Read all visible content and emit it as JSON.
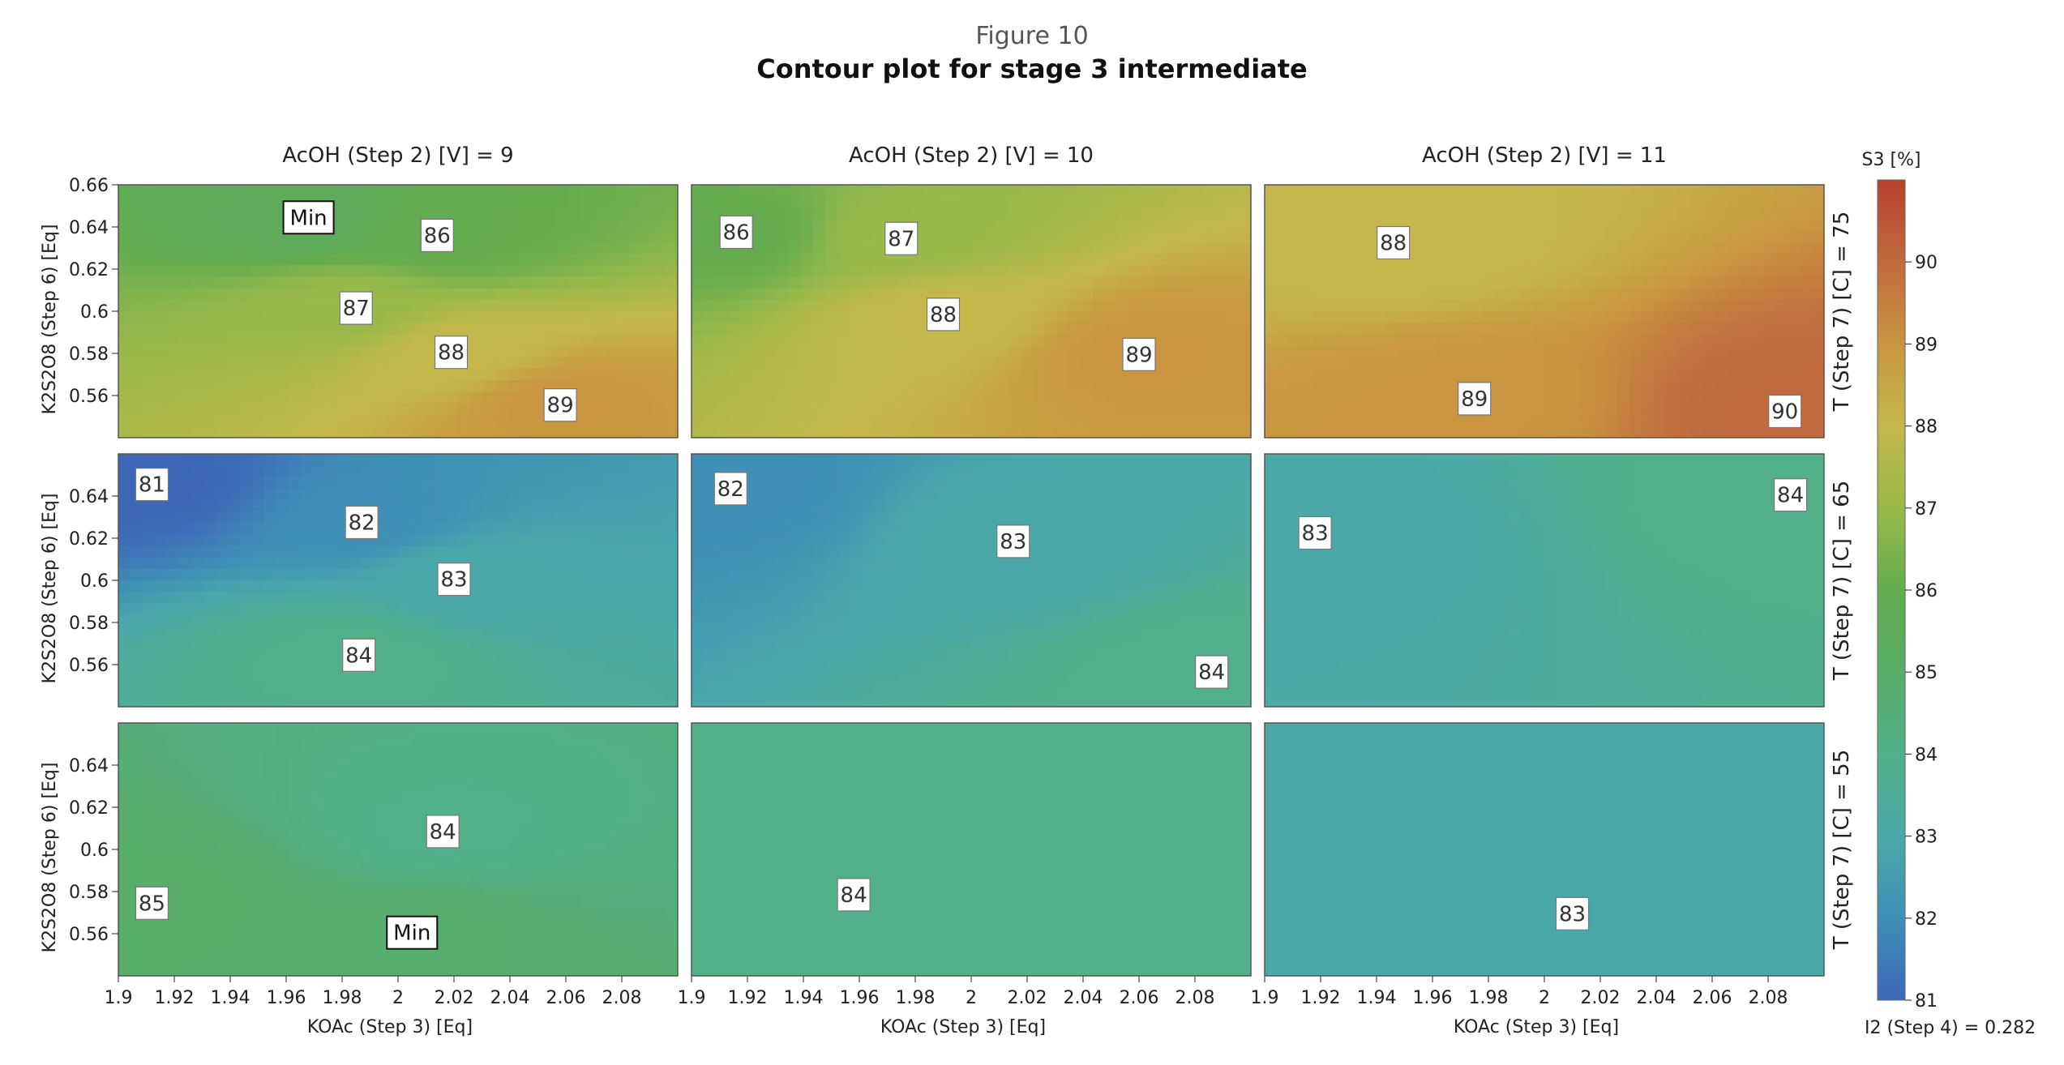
{
  "figure": {
    "number": "Figure 10",
    "title": "Contour plot for stage 3 intermediate"
  },
  "chart_data": {
    "type": "contour",
    "columns": [
      {
        "label": "AcOH (Step 2) [V] = 9",
        "acoh": 9
      },
      {
        "label": "AcOH (Step 2) [V] = 10",
        "acoh": 10
      },
      {
        "label": "AcOH (Step 2) [V] = 11",
        "acoh": 11
      }
    ],
    "rows": [
      {
        "label": "T (Step 7) [C] = 75",
        "T": 75
      },
      {
        "label": "T (Step 7) [C] = 65",
        "T": 65
      },
      {
        "label": "T (Step 7) [C] = 55",
        "T": 55
      }
    ],
    "xlabel": "KOAc (Step 3) [Eq]",
    "ylabel": "K2S2O8 (Step 6) [Eq]",
    "xlim": [
      1.9,
      2.1
    ],
    "ylim": [
      0.54,
      0.66
    ],
    "x_ticks": [
      "1.9",
      "1.92",
      "1.94",
      "1.96",
      "1.98",
      "2",
      "2.02",
      "2.04",
      "2.06",
      "2.08"
    ],
    "y_ticks_top": [
      "0.66",
      "0.64",
      "0.62",
      "0.6",
      "0.58",
      "0.56"
    ],
    "y_ticks": [
      "0.64",
      "0.62",
      "0.6",
      "0.58",
      "0.56"
    ],
    "colorbar": {
      "title": "S3 [%]",
      "range": [
        81,
        91
      ],
      "ticks": [
        "90",
        "89",
        "88",
        "87",
        "86",
        "85",
        "84",
        "83",
        "82",
        "81"
      ],
      "colors": [
        "#3d68b8",
        "#3f8fb6",
        "#4aa9a8",
        "#52b08a",
        "#58ad68",
        "#63ac4f",
        "#99b94a",
        "#c4b84a",
        "#c99540",
        "#c06a3e",
        "#b8412f"
      ]
    },
    "fixed_factor": "I2 (Step 4) = 0.282",
    "contour_labels": [
      {
        "col": 0,
        "row": 0,
        "text": "Min",
        "x": 1.968,
        "y": 0.6445,
        "min": true
      },
      {
        "col": 0,
        "row": 0,
        "text": "86",
        "x": 2.014,
        "y": 0.636
      },
      {
        "col": 0,
        "row": 0,
        "text": "87",
        "x": 1.985,
        "y": 0.6015
      },
      {
        "col": 0,
        "row": 0,
        "text": "88",
        "x": 2.019,
        "y": 0.5805
      },
      {
        "col": 0,
        "row": 0,
        "text": "89",
        "x": 2.058,
        "y": 0.5555
      },
      {
        "col": 1,
        "row": 0,
        "text": "86",
        "x": 1.916,
        "y": 0.6375
      },
      {
        "col": 1,
        "row": 0,
        "text": "87",
        "x": 1.975,
        "y": 0.6345
      },
      {
        "col": 1,
        "row": 0,
        "text": "88",
        "x": 1.99,
        "y": 0.5985
      },
      {
        "col": 1,
        "row": 0,
        "text": "89",
        "x": 2.06,
        "y": 0.5795
      },
      {
        "col": 2,
        "row": 0,
        "text": "88",
        "x": 1.946,
        "y": 0.6325
      },
      {
        "col": 2,
        "row": 0,
        "text": "89",
        "x": 1.975,
        "y": 0.5585
      },
      {
        "col": 2,
        "row": 0,
        "text": "90",
        "x": 2.086,
        "y": 0.5525
      },
      {
        "col": 0,
        "row": 1,
        "text": "81",
        "x": 1.912,
        "y": 0.6455
      },
      {
        "col": 0,
        "row": 1,
        "text": "82",
        "x": 1.987,
        "y": 0.6275
      },
      {
        "col": 0,
        "row": 1,
        "text": "83",
        "x": 2.02,
        "y": 0.6005
      },
      {
        "col": 0,
        "row": 1,
        "text": "84",
        "x": 1.986,
        "y": 0.5645
      },
      {
        "col": 1,
        "row": 1,
        "text": "82",
        "x": 1.914,
        "y": 0.6435
      },
      {
        "col": 1,
        "row": 1,
        "text": "83",
        "x": 2.015,
        "y": 0.6185
      },
      {
        "col": 1,
        "row": 1,
        "text": "84",
        "x": 2.086,
        "y": 0.5565
      },
      {
        "col": 2,
        "row": 1,
        "text": "83",
        "x": 1.918,
        "y": 0.6225
      },
      {
        "col": 2,
        "row": 1,
        "text": "84",
        "x": 2.088,
        "y": 0.6405
      },
      {
        "col": 0,
        "row": 2,
        "text": "84",
        "x": 2.016,
        "y": 0.6085
      },
      {
        "col": 0,
        "row": 2,
        "text": "85",
        "x": 1.912,
        "y": 0.5745
      },
      {
        "col": 0,
        "row": 2,
        "text": "Min",
        "x": 2.005,
        "y": 0.5605,
        "min": true
      },
      {
        "col": 1,
        "row": 2,
        "text": "84",
        "x": 1.958,
        "y": 0.5785
      },
      {
        "col": 2,
        "row": 2,
        "text": "83",
        "x": 2.01,
        "y": 0.5695
      }
    ]
  }
}
